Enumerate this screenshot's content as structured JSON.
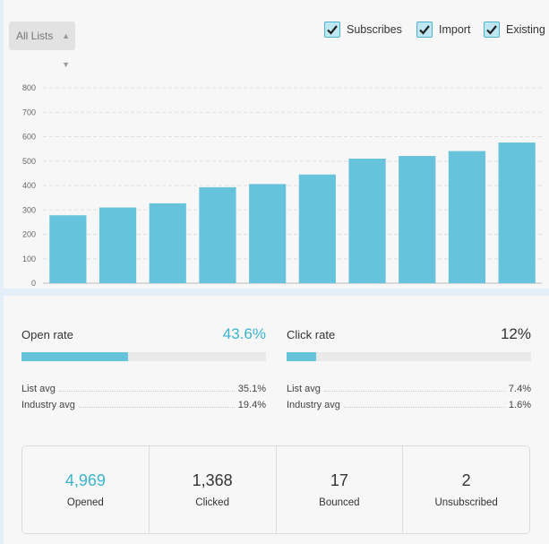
{
  "controls": {
    "list_select": {
      "value": "All Lists"
    },
    "filters": [
      {
        "label": "Subscribes",
        "checked": true
      },
      {
        "label": "Import",
        "checked": true
      },
      {
        "label": "Existing",
        "checked": true
      }
    ]
  },
  "chart_data": {
    "type": "bar",
    "categories": [
      "",
      "",
      "",
      "",
      "",
      "",
      "",
      "",
      "",
      ""
    ],
    "values": [
      278,
      310,
      327,
      393,
      406,
      445,
      510,
      521,
      541,
      576
    ],
    "ylim": [
      0,
      800
    ],
    "yticks": [
      0,
      100,
      200,
      300,
      400,
      500,
      600,
      700,
      800
    ],
    "grid": true,
    "bar_color": "#67c3dc",
    "title": "",
    "xlabel": "",
    "ylabel": ""
  },
  "open_rate": {
    "label": "Open rate",
    "value": "43.6%",
    "fill_fraction": 0.436,
    "list_avg_label": "List avg",
    "list_avg": "35.1%",
    "industry_avg_label": "Industry avg",
    "industry_avg": "19.4%"
  },
  "click_rate": {
    "label": "Click rate",
    "value": "12%",
    "fill_fraction": 0.12,
    "list_avg_label": "List avg",
    "list_avg": "7.4%",
    "industry_avg_label": "Industry avg",
    "industry_avg": "1.6%"
  },
  "stats": [
    {
      "value": "4,969",
      "label": "Opened"
    },
    {
      "value": "1,368",
      "label": "Clicked"
    },
    {
      "value": "17",
      "label": "Bounced"
    },
    {
      "value": "2",
      "label": "Unsubscribed"
    }
  ],
  "colors": {
    "accent": "#3ab5d0",
    "bar": "#67c3dc",
    "track": "#e9e9e9"
  }
}
